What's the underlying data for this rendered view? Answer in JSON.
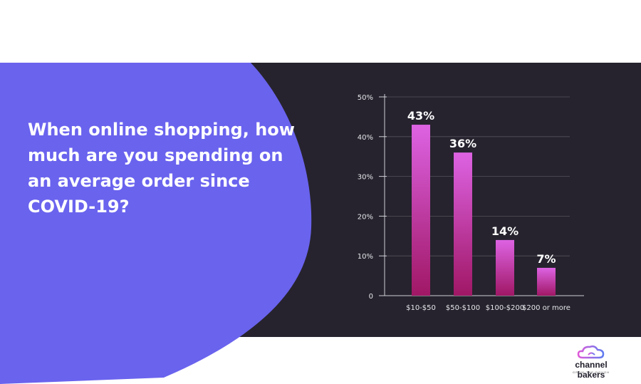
{
  "colors": {
    "panel": "#26232e",
    "blob": "#6a63ee",
    "bar_top": "#dd63e3",
    "bar_bottom": "#a01765",
    "text": "#ffffff",
    "axis": "#cfcfd6"
  },
  "question": "When online shopping, how much are you spending on an average order since COVID-19?",
  "logo": {
    "name": "channel bakers",
    "tagline": "GROW THE DOUGH",
    "icon": "cloud-logo-icon"
  },
  "chart_data": {
    "type": "bar",
    "categories": [
      "$10-$50",
      "$50-$100",
      "$100-$200",
      "$200 or more"
    ],
    "values": [
      43,
      36,
      14,
      7
    ],
    "value_labels": [
      "43%",
      "36%",
      "14%",
      "7%"
    ],
    "yticks": [
      0,
      10,
      20,
      30,
      40,
      50
    ],
    "ytick_labels": [
      "0",
      "10%",
      "20%",
      "30%",
      "40%",
      "50%"
    ],
    "ylim": [
      0,
      50
    ],
    "grid": true,
    "title": "",
    "xlabel": "",
    "ylabel": ""
  }
}
